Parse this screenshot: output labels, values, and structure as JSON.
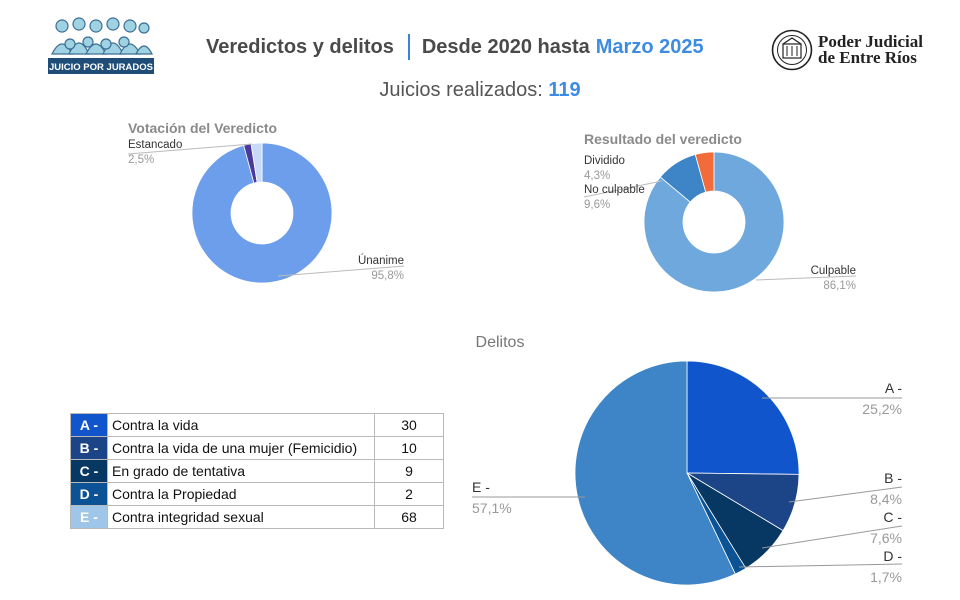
{
  "header": {
    "logo_left_text": "JUICIO POR JURADOS",
    "title_main": "Veredictos y delitos",
    "title_range": "Desde 2020 hasta",
    "title_highlight": "Marzo 2025",
    "logo_right_line1": "Poder Judicial",
    "logo_right_line2": "de Entre Ríos"
  },
  "trials": {
    "label": "Juicios realizados:",
    "count": "119"
  },
  "colors": {
    "accent": "#3d8be2",
    "code_A": "#1155cc",
    "code_B": "#1c4587",
    "code_C": "#073763",
    "code_D": "#0b5394",
    "code_E": "#9fc5e8"
  },
  "crime_table": [
    {
      "code": "A -",
      "label": "Contra la vida",
      "count": "30"
    },
    {
      "code": "B -",
      "label": "Contra la vida de una mujer (Femicidio)",
      "count": "10"
    },
    {
      "code": "C -",
      "label": "En grado de tentativa",
      "count": "9"
    },
    {
      "code": "D -",
      "label": "Contra la Propiedad",
      "count": "2"
    },
    {
      "code": "E -",
      "label": "Contra integridad sexual",
      "count": "68"
    }
  ],
  "chart_data": [
    {
      "type": "pie",
      "donut": true,
      "title": "Votación del Veredicto",
      "slices": [
        {
          "label": "Únanime",
          "value": 95.8,
          "value_label": "95,8%",
          "color": "#6d9eeb"
        },
        {
          "label": "",
          "value": 1.7,
          "value_label": "",
          "color": "#4b3a9c"
        },
        {
          "label": "Estancado",
          "value": 2.5,
          "value_label": "2,5%",
          "color": "#c9daf8"
        }
      ]
    },
    {
      "type": "pie",
      "donut": true,
      "title": "Resultado del veredicto",
      "slices": [
        {
          "label": "Culpable",
          "value": 86.1,
          "value_label": "86,1%",
          "color": "#6fa8dc"
        },
        {
          "label": "No culpable",
          "value": 9.6,
          "value_label": "9,6%",
          "color": "#3d85c6"
        },
        {
          "label": "Dividido",
          "value": 4.3,
          "value_label": "4,3%",
          "color": "#f26b3a"
        }
      ]
    },
    {
      "type": "pie",
      "donut": false,
      "title": "Delitos",
      "slices": [
        {
          "label": "A -",
          "value": 25.2,
          "value_label": "25,2%",
          "color": "#1155cc"
        },
        {
          "label": "B -",
          "value": 8.4,
          "value_label": "8,4%",
          "color": "#1c4587"
        },
        {
          "label": "C -",
          "value": 7.6,
          "value_label": "7,6%",
          "color": "#073763"
        },
        {
          "label": "D -",
          "value": 1.7,
          "value_label": "1,7%",
          "color": "#0b5394"
        },
        {
          "label": "E -",
          "value": 57.1,
          "value_label": "57,1%",
          "color": "#3d85c6"
        }
      ]
    }
  ]
}
